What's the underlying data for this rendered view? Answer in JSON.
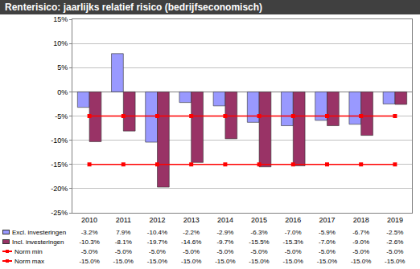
{
  "chart_data": {
    "type": "bar",
    "title": "Renterisico: jaarlijks relatief risico (bedrijfseconomisch)",
    "categories": [
      "2010",
      "2011",
      "2012",
      "2013",
      "2014",
      "2015",
      "2016",
      "2017",
      "2018",
      "2019"
    ],
    "series": [
      {
        "name": "Excl. investeringen",
        "type": "bar",
        "color": "#9999ff",
        "values": [
          -3.2,
          7.9,
          -10.4,
          -2.2,
          -2.9,
          -6.3,
          -7.0,
          -5.9,
          -6.7,
          -2.5
        ],
        "value_labels": [
          "-3.2%",
          "7.9%",
          "-10.4%",
          "-2.2%",
          "-2.9%",
          "-6.3%",
          "-7.0%",
          "-5.9%",
          "-6.7%",
          "-2.5%"
        ]
      },
      {
        "name": "Incl. investeringen",
        "type": "bar",
        "color": "#993366",
        "values": [
          -10.3,
          -8.1,
          -19.7,
          -14.6,
          -9.7,
          -15.5,
          -15.3,
          -7.0,
          -9.0,
          -2.6
        ],
        "value_labels": [
          "-10.3%",
          "-8.1%",
          "-19.7%",
          "-14.6%",
          "-9.7%",
          "-15.5%",
          "-15.3%",
          "-7.0%",
          "-9.0%",
          "-2.6%"
        ]
      },
      {
        "name": "Norm min",
        "type": "line",
        "color": "#ff0000",
        "marker": "square",
        "values": [
          -5.0,
          -5.0,
          -5.0,
          -5.0,
          -5.0,
          -5.0,
          -5.0,
          -5.0,
          -5.0,
          -5.0
        ],
        "value_labels": [
          "-5.0%",
          "-5.0%",
          "-5.0%",
          "-5.0%",
          "-5.0%",
          "-5.0%",
          "-5.0%",
          "-5.0%",
          "-5.0%",
          "-5.0%"
        ]
      },
      {
        "name": "Norm max",
        "type": "line",
        "color": "#ff0000",
        "marker": "square",
        "values": [
          -15.0,
          -15.0,
          -15.0,
          -15.0,
          -15.0,
          -15.0,
          -15.0,
          -15.0,
          -15.0,
          -15.0
        ],
        "value_labels": [
          "-15.0%",
          "-15.0%",
          "-15.0%",
          "-15.0%",
          "-15.0%",
          "-15.0%",
          "-15.0%",
          "-15.0%",
          "-15.0%",
          "-15.0%"
        ]
      }
    ],
    "ylim": [
      -25,
      15
    ],
    "yticks": [
      {
        "value": -25,
        "label": "-25%"
      },
      {
        "value": -20,
        "label": "-20%"
      },
      {
        "value": -15,
        "label": "-15%"
      },
      {
        "value": -10,
        "label": "-10%"
      },
      {
        "value": -5,
        "label": "-5%"
      },
      {
        "value": 0,
        "label": "0%"
      },
      {
        "value": 5,
        "label": "5%"
      },
      {
        "value": 10,
        "label": "10%"
      },
      {
        "value": 15,
        "label": "15%"
      }
    ],
    "grid": true
  }
}
